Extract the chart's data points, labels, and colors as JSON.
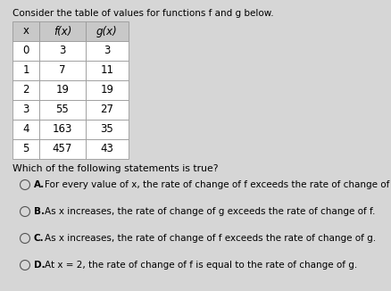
{
  "title": "Consider the table of values for functions f and g below.",
  "table_headers": [
    "x",
    "f(x)",
    "g(x)"
  ],
  "table_data": [
    [
      "0",
      "3",
      "3"
    ],
    [
      "1",
      "7",
      "11"
    ],
    [
      "2",
      "19",
      "19"
    ],
    [
      "3",
      "55",
      "27"
    ],
    [
      "4",
      "163",
      "35"
    ],
    [
      "5",
      "457",
      "43"
    ]
  ],
  "question": "Which of the following statements is true?",
  "choices": [
    [
      "A.",
      "For every value of x, the rate of change of f exceeds the rate of change of g."
    ],
    [
      "B.",
      "As x increases, the rate of change of g exceeds the rate of change of f."
    ],
    [
      "C.",
      "As x increases, the rate of change of f exceeds the rate of change of g."
    ],
    [
      "D.",
      "At x = 2, the rate of change of f is equal to the rate of change of g."
    ]
  ],
  "bg_color": "#d6d6d6",
  "table_bg": "#ffffff",
  "header_bg": "#c8c8c8",
  "grid_color": "#999999",
  "font_size_title": 7.5,
  "font_size_table": 8.5,
  "font_size_question": 7.8,
  "font_size_choices": 7.5,
  "font_size_label": 7.5
}
